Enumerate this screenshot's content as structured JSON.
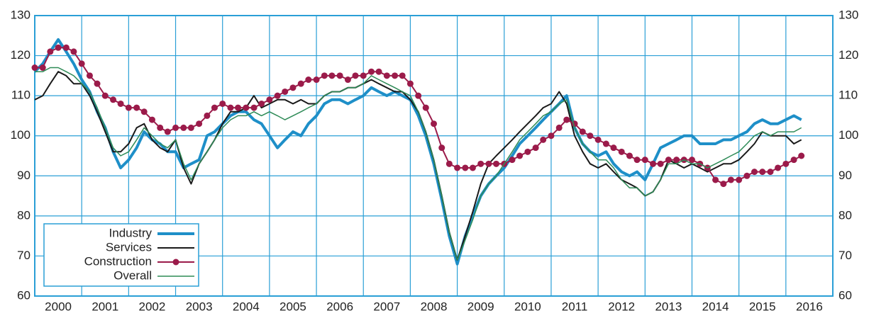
{
  "chart_data": {
    "type": "line",
    "x": [
      2000,
      2000.17,
      2000.33,
      2000.5,
      2000.67,
      2000.83,
      2001,
      2001.17,
      2001.33,
      2001.5,
      2001.67,
      2001.83,
      2002,
      2002.17,
      2002.33,
      2002.5,
      2002.67,
      2002.83,
      2003,
      2003.17,
      2003.33,
      2003.5,
      2003.67,
      2003.83,
      2004,
      2004.17,
      2004.33,
      2004.5,
      2004.67,
      2004.83,
      2005,
      2005.17,
      2005.33,
      2005.5,
      2005.67,
      2005.83,
      2006,
      2006.17,
      2006.33,
      2006.5,
      2006.67,
      2006.83,
      2007,
      2007.17,
      2007.33,
      2007.5,
      2007.67,
      2007.83,
      2008,
      2008.17,
      2008.33,
      2008.5,
      2008.67,
      2008.83,
      2009,
      2009.17,
      2009.33,
      2009.5,
      2009.67,
      2009.83,
      2010,
      2010.17,
      2010.33,
      2010.5,
      2010.67,
      2010.83,
      2011,
      2011.17,
      2011.33,
      2011.5,
      2011.67,
      2011.83,
      2012,
      2012.17,
      2012.33,
      2012.5,
      2012.67,
      2012.83,
      2013,
      2013.17,
      2013.33,
      2013.5,
      2013.67,
      2013.83,
      2014,
      2014.17,
      2014.33,
      2014.5,
      2014.67,
      2014.83,
      2015,
      2015.17,
      2015.33,
      2015.5,
      2015.67,
      2015.83,
      2016,
      2016.17,
      2016.33
    ],
    "series": [
      {
        "name": "Industry",
        "color": "#1e8fc8",
        "width": 4,
        "values": [
          116,
          118,
          121,
          124,
          121,
          118,
          114,
          111,
          106,
          102,
          96,
          92,
          94,
          97,
          101,
          99,
          98,
          96,
          96,
          92,
          93,
          94,
          100,
          101,
          103,
          105,
          106,
          106,
          104,
          103,
          100,
          97,
          99,
          101,
          100,
          103,
          105,
          108,
          109,
          109,
          108,
          109,
          110,
          112,
          111,
          110,
          111,
          110,
          109,
          105,
          100,
          93,
          84,
          75,
          68,
          75,
          80,
          85,
          88,
          90,
          92,
          95,
          98,
          100,
          102,
          104,
          106,
          108,
          110,
          102,
          98,
          96,
          95,
          96,
          93,
          91,
          90,
          91,
          89,
          93,
          97,
          98,
          99,
          100,
          100,
          98,
          98,
          98,
          99,
          99,
          100,
          101,
          103,
          104,
          103,
          103,
          104,
          105,
          104
        ]
      },
      {
        "name": "Services",
        "color": "#1a1a1a",
        "width": 2,
        "values": [
          109,
          110,
          113,
          116,
          115,
          113,
          113,
          110,
          106,
          101,
          96,
          96,
          98,
          102,
          103,
          99,
          97,
          96,
          99,
          92,
          88,
          93,
          96,
          99,
          103,
          106,
          106,
          107,
          110,
          107,
          108,
          109,
          109,
          108,
          109,
          108,
          108,
          110,
          111,
          111,
          112,
          112,
          113,
          114,
          113,
          112,
          111,
          111,
          109,
          106,
          101,
          94,
          85,
          76,
          69,
          75,
          81,
          88,
          93,
          95,
          97,
          99,
          101,
          103,
          105,
          107,
          108,
          111,
          108,
          100,
          96,
          93,
          92,
          93,
          91,
          89,
          88,
          87,
          85,
          86,
          89,
          94,
          93,
          92,
          93,
          92,
          91,
          92,
          93,
          93,
          94,
          96,
          98,
          101,
          100,
          100,
          100,
          98,
          99
        ]
      },
      {
        "name": "Construction",
        "color": "#9b1b4a",
        "width": 2,
        "marker": true,
        "values": [
          117,
          117,
          121,
          122,
          122,
          121,
          118,
          115,
          113,
          110,
          109,
          108,
          107,
          107,
          106,
          104,
          102,
          101,
          102,
          102,
          102,
          103,
          105,
          107,
          108,
          107,
          107,
          107,
          107,
          108,
          109,
          110,
          111,
          112,
          113,
          114,
          114,
          115,
          115,
          115,
          114,
          115,
          115,
          116,
          116,
          115,
          115,
          115,
          113,
          110,
          107,
          103,
          97,
          93,
          92,
          92,
          92,
          93,
          93,
          93,
          93,
          94,
          95,
          96,
          97,
          99,
          100,
          102,
          104,
          103,
          101,
          100,
          99,
          98,
          97,
          96,
          95,
          94,
          94,
          93,
          93,
          94,
          94,
          94,
          94,
          93,
          92,
          89,
          88,
          89,
          89,
          90,
          91,
          91,
          91,
          92,
          93,
          94,
          95
        ]
      },
      {
        "name": "Overall",
        "color": "#2e8b57",
        "width": 1.5,
        "values": [
          116,
          116,
          117,
          117,
          116,
          115,
          113,
          111,
          107,
          102,
          97,
          95,
          96,
          99,
          102,
          100,
          98,
          97,
          99,
          93,
          89,
          93,
          96,
          99,
          102,
          104,
          105,
          105,
          106,
          105,
          106,
          105,
          104,
          105,
          106,
          107,
          108,
          110,
          111,
          111,
          112,
          112,
          113,
          115,
          114,
          113,
          112,
          111,
          110,
          106,
          101,
          94,
          85,
          76,
          69,
          74,
          79,
          85,
          88,
          90,
          93,
          96,
          99,
          101,
          103,
          105,
          106,
          108,
          109,
          102,
          98,
          96,
          94,
          94,
          92,
          89,
          87,
          87,
          85,
          86,
          89,
          93,
          93,
          94,
          93,
          93,
          92,
          93,
          94,
          95,
          96,
          98,
          100,
          101,
          100,
          101,
          101,
          101,
          102
        ]
      }
    ],
    "xlim": [
      2000,
      2017
    ],
    "xticks": [
      2000,
      2001,
      2002,
      2003,
      2004,
      2005,
      2006,
      2007,
      2008,
      2009,
      2010,
      2011,
      2012,
      2013,
      2014,
      2015,
      2016
    ],
    "ylim": [
      60,
      130
    ],
    "yticks": [
      60,
      70,
      80,
      90,
      100,
      110,
      120,
      130
    ],
    "grid": true,
    "legend": "lower left"
  }
}
